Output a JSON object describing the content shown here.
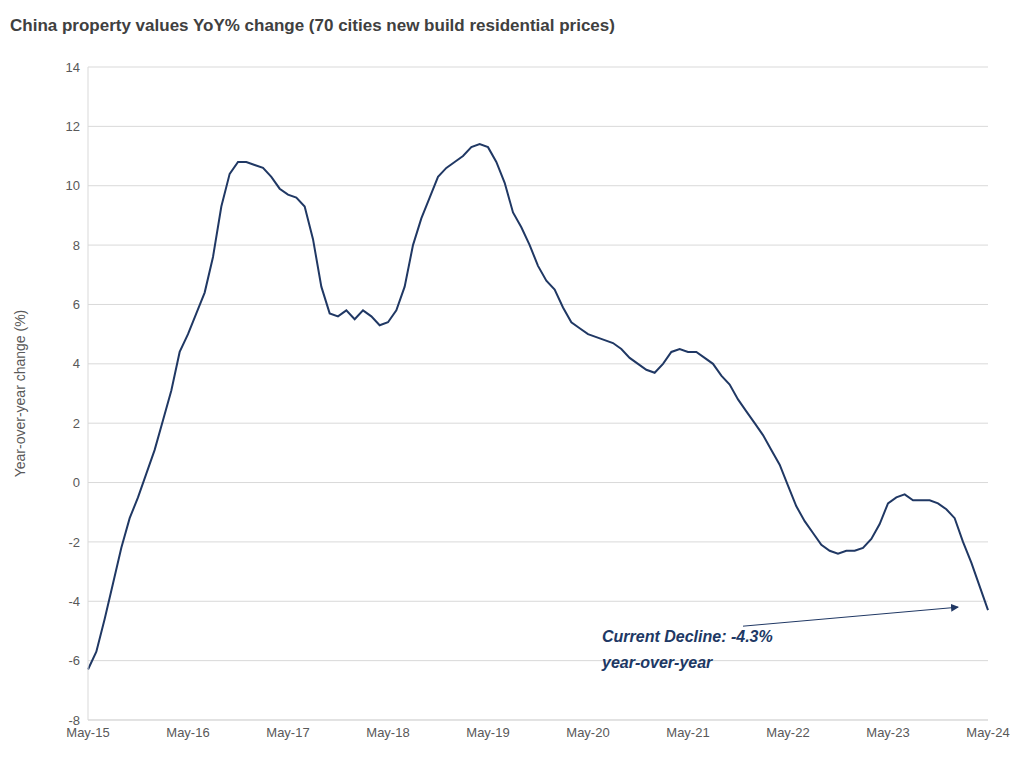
{
  "chart_data": {
    "type": "line",
    "title": "China property values YoY% change (70 cities new build residential prices)",
    "y_label": "Year-over-year change (%)",
    "annotation": [
      "Current Decline: -4.3%",
      "year-over-year"
    ],
    "categories": [
      "May-15",
      null,
      null,
      null,
      null,
      null,
      null,
      null,
      null,
      null,
      null,
      null,
      "May-16",
      null,
      null,
      null,
      null,
      null,
      null,
      null,
      null,
      null,
      null,
      null,
      "May-17",
      null,
      null,
      null,
      null,
      null,
      null,
      null,
      null,
      null,
      null,
      null,
      "May-18",
      null,
      null,
      null,
      null,
      null,
      null,
      null,
      null,
      null,
      null,
      null,
      "May-19",
      null,
      null,
      null,
      null,
      null,
      null,
      null,
      null,
      null,
      null,
      null,
      "May-20",
      null,
      null,
      null,
      null,
      null,
      null,
      null,
      null,
      null,
      null,
      null,
      "May-21",
      null,
      null,
      null,
      null,
      null,
      null,
      null,
      null,
      null,
      null,
      null,
      "May-22",
      null,
      null,
      null,
      null,
      null,
      null,
      null,
      null,
      null,
      null,
      null,
      "May-23",
      null,
      null,
      null,
      null,
      null,
      null,
      null,
      null,
      null,
      null,
      null,
      "May-24"
    ],
    "values": [
      -6.3,
      -5.7,
      -4.6,
      -3.4,
      -2.2,
      -1.2,
      -0.5,
      0.3,
      1.1,
      2.1,
      3.1,
      4.4,
      5.0,
      5.7,
      6.4,
      7.6,
      9.3,
      10.4,
      10.8,
      10.8,
      10.7,
      10.6,
      10.3,
      9.9,
      9.7,
      9.6,
      9.3,
      8.2,
      6.6,
      5.7,
      5.6,
      5.8,
      5.5,
      5.8,
      5.6,
      5.3,
      5.4,
      5.8,
      6.6,
      8.0,
      8.9,
      9.6,
      10.3,
      10.6,
      10.8,
      11.0,
      11.3,
      11.4,
      11.3,
      10.8,
      10.1,
      9.1,
      8.6,
      8.0,
      7.3,
      6.8,
      6.5,
      5.9,
      5.4,
      5.2,
      5.0,
      4.9,
      4.8,
      4.7,
      4.5,
      4.2,
      4.0,
      3.8,
      3.7,
      4.0,
      4.4,
      4.5,
      4.4,
      4.4,
      4.2,
      4.0,
      3.6,
      3.3,
      2.8,
      2.4,
      2.0,
      1.6,
      1.1,
      0.6,
      -0.1,
      -0.8,
      -1.3,
      -1.7,
      -2.1,
      -2.3,
      -2.4,
      -2.3,
      -2.3,
      -2.2,
      -1.9,
      -1.4,
      -0.7,
      -0.5,
      -0.4,
      -0.6,
      -0.6,
      -0.6,
      -0.7,
      -0.9,
      -1.2,
      -2.0,
      -2.7,
      -3.5,
      -4.3
    ],
    "color": "#203864",
    "ylim": [
      -8,
      14
    ],
    "yticks": [
      -8,
      -6,
      -4,
      -2,
      0,
      2,
      4,
      6,
      8,
      10,
      12,
      14
    ],
    "grid": true
  }
}
